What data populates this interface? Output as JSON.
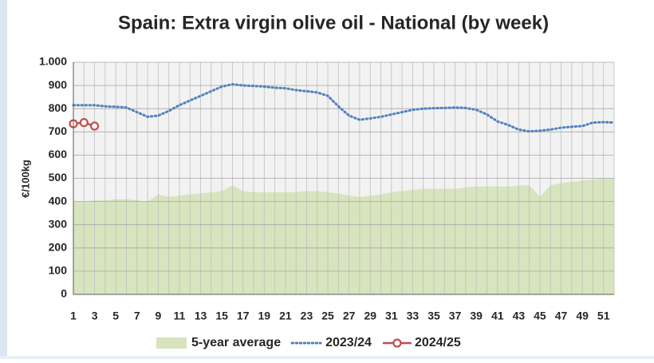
{
  "chart_data": {
    "type": "area-line",
    "title": "Spain: Extra virgin olive oil - National (by week)",
    "y_label": "€/100kg",
    "x": [
      1,
      2,
      3,
      4,
      5,
      6,
      7,
      8,
      9,
      10,
      11,
      12,
      13,
      14,
      15,
      16,
      17,
      18,
      19,
      20,
      21,
      22,
      23,
      24,
      25,
      26,
      27,
      28,
      29,
      30,
      31,
      32,
      33,
      34,
      35,
      36,
      37,
      38,
      39,
      40,
      41,
      42,
      43,
      44,
      45,
      46,
      47,
      48,
      49,
      50,
      51,
      52
    ],
    "xlim": [
      1,
      52
    ],
    "xticks": [
      1,
      3,
      5,
      7,
      9,
      11,
      13,
      15,
      17,
      19,
      21,
      23,
      25,
      27,
      29,
      31,
      33,
      35,
      37,
      39,
      41,
      43,
      45,
      47,
      49,
      51
    ],
    "ylim": [
      0,
      1000
    ],
    "yticks": [
      0,
      100,
      200,
      300,
      400,
      500,
      600,
      700,
      800,
      900,
      {
        "value": 1000,
        "label": "1.000"
      }
    ],
    "grid": true,
    "series": [
      {
        "name": "5-year average",
        "kind": "area",
        "color": "#d7e4bd",
        "values": [
          400,
          400,
          405,
          405,
          410,
          410,
          405,
          400,
          430,
          420,
          425,
          430,
          435,
          440,
          445,
          470,
          445,
          440,
          440,
          440,
          440,
          440,
          445,
          445,
          440,
          435,
          425,
          420,
          425,
          430,
          440,
          445,
          450,
          455,
          455,
          455,
          455,
          460,
          465,
          465,
          465,
          465,
          468,
          470,
          420,
          470,
          480,
          485,
          490,
          495,
          500,
          500
        ]
      },
      {
        "name": "2023/24",
        "kind": "dotted",
        "color": "#4f81bd",
        "values": [
          815,
          815,
          815,
          810,
          808,
          805,
          785,
          765,
          770,
          790,
          815,
          835,
          855,
          875,
          895,
          905,
          900,
          898,
          895,
          890,
          888,
          880,
          875,
          870,
          855,
          810,
          770,
          752,
          758,
          765,
          775,
          785,
          795,
          800,
          802,
          803,
          805,
          803,
          795,
          775,
          745,
          730,
          710,
          702,
          705,
          710,
          718,
          722,
          725,
          740,
          742,
          740
        ]
      },
      {
        "name": "2024/25",
        "kind": "marker-line",
        "color": "#c0504d",
        "values": [
          735,
          740,
          725,
          null,
          null,
          null,
          null,
          null,
          null,
          null,
          null,
          null,
          null,
          null,
          null,
          null,
          null,
          null,
          null,
          null,
          null,
          null,
          null,
          null,
          null,
          null,
          null,
          null,
          null,
          null,
          null,
          null,
          null,
          null,
          null,
          null,
          null,
          null,
          null,
          null,
          null,
          null,
          null,
          null,
          null,
          null,
          null,
          null,
          null,
          null,
          null,
          null
        ]
      }
    ]
  }
}
